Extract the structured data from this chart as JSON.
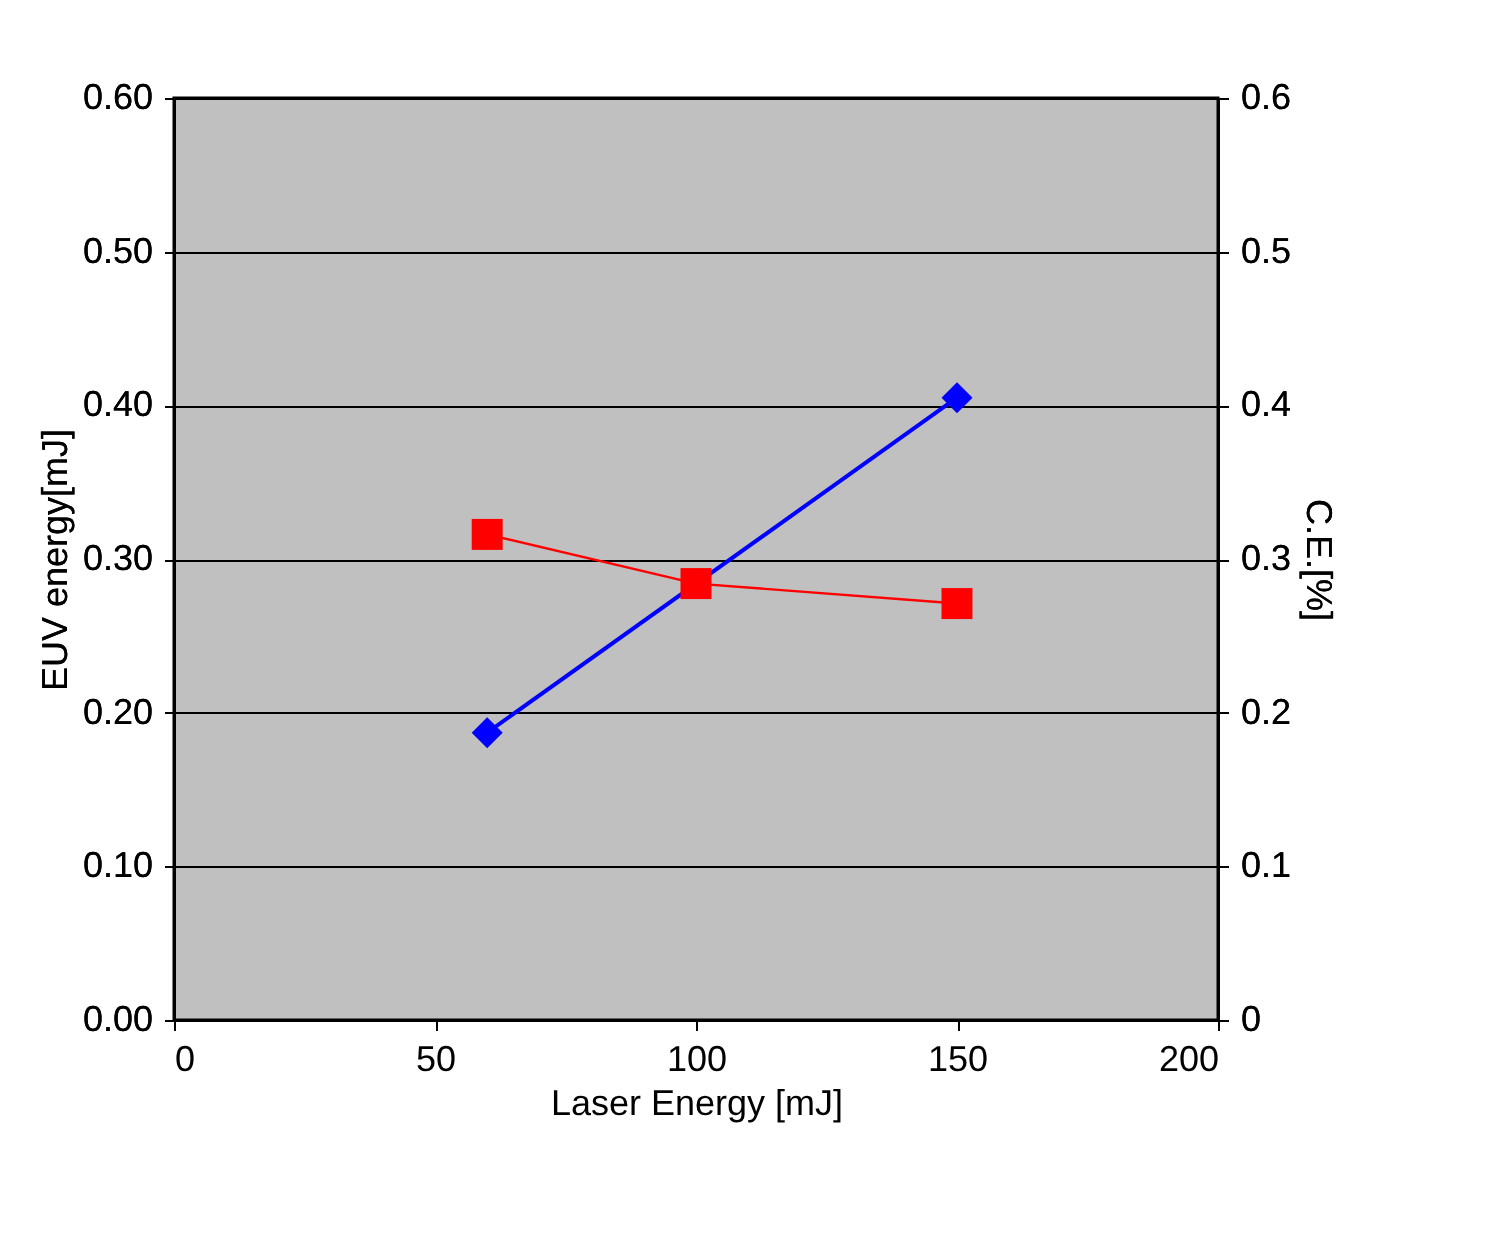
{
  "chart_data": {
    "type": "line",
    "xlabel": "Laser Energy [mJ]",
    "ylabel": "EUV energy[mJ]",
    "y2label": "C.E.[%]",
    "series": [
      {
        "name": null,
        "color": "#0000ff",
        "x": [
          60,
          150
        ],
        "values": [
          0.187,
          0.405
        ],
        "marker": "diamond"
      },
      {
        "name": null,
        "color": "#ff0000",
        "x": [
          60,
          100,
          150
        ],
        "values": [
          0.316,
          0.284,
          0.271
        ],
        "axis": "y2",
        "marker": "square"
      }
    ],
    "xlim": [
      0,
      200
    ],
    "xticks": [
      0,
      50,
      100,
      150,
      200
    ],
    "ylim": [
      0,
      0.6
    ],
    "yticks": [
      {
        "value": 0,
        "label": "0.00"
      },
      {
        "value": 0.1,
        "label": "0.10"
      },
      {
        "value": 0.2,
        "label": "0.20"
      },
      {
        "value": 0.3,
        "label": "0.30"
      },
      {
        "value": 0.4,
        "label": "0.40"
      },
      {
        "value": 0.5,
        "label": "0.50"
      },
      {
        "value": 0.6,
        "label": "0.60"
      }
    ],
    "y2lim": [
      0,
      0.6
    ],
    "y2ticks": [
      0,
      0.1,
      0.2,
      0.3,
      0.4,
      0.5,
      0.6
    ],
    "grid": "y",
    "line_style": "solid"
  }
}
